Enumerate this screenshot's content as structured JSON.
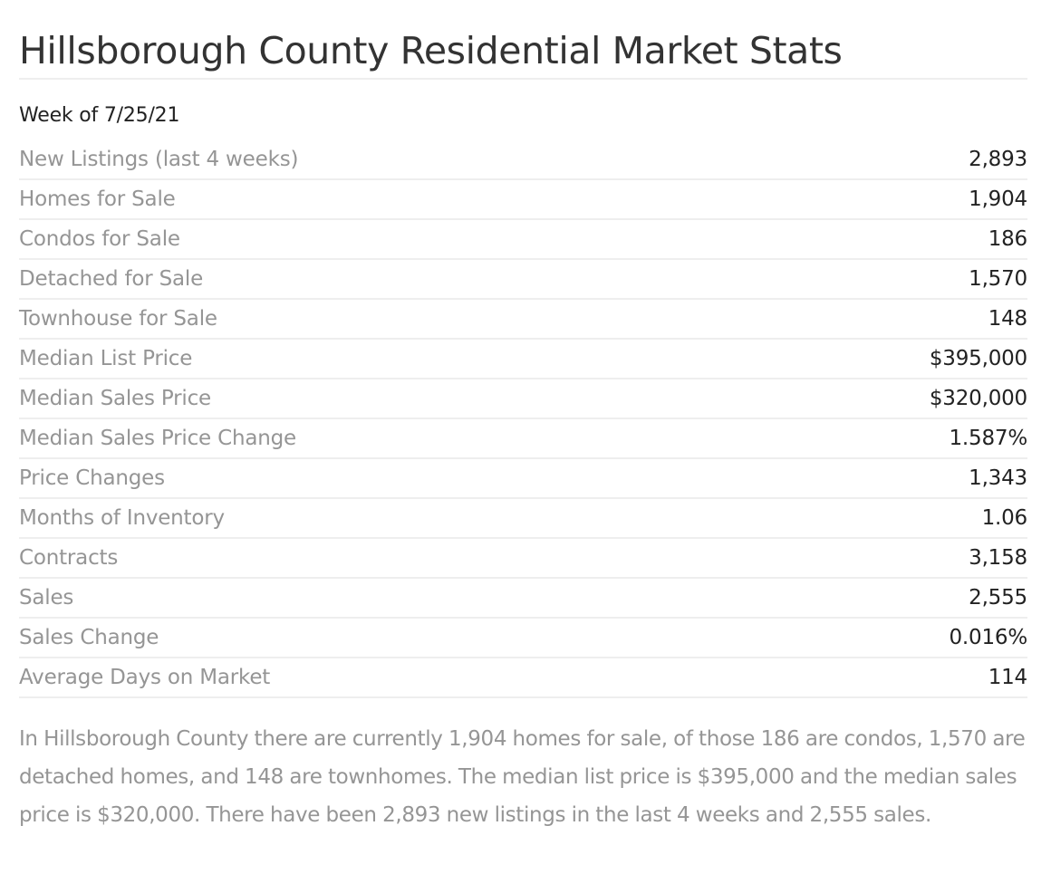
{
  "header": {
    "title": "Hillsborough County Residential Market Stats",
    "subtitle": "Week of 7/25/21"
  },
  "stats": [
    {
      "label": "New Listings (last 4 weeks)",
      "value": "2,893"
    },
    {
      "label": "Homes for Sale",
      "value": "1,904"
    },
    {
      "label": "Condos for Sale",
      "value": "186"
    },
    {
      "label": "Detached for Sale",
      "value": "1,570"
    },
    {
      "label": "Townhouse for Sale",
      "value": "148"
    },
    {
      "label": "Median List Price",
      "value": "$395,000"
    },
    {
      "label": "Median Sales Price",
      "value": "$320,000"
    },
    {
      "label": "Median Sales Price Change",
      "value": "1.587%"
    },
    {
      "label": "Price Changes",
      "value": "1,343"
    },
    {
      "label": "Months of Inventory",
      "value": "1.06"
    },
    {
      "label": "Contracts",
      "value": "3,158"
    },
    {
      "label": "Sales",
      "value": "2,555"
    },
    {
      "label": "Sales Change",
      "value": "0.016%"
    },
    {
      "label": "Average Days on Market",
      "value": "114"
    }
  ],
  "summary": "In Hillsborough County there are currently 1,904 homes for sale, of those 186 are condos, 1,570 are detached homes, and 148 are townhomes. The median list price is $395,000 and the median sales price is $320,000. There have been 2,893 new listings in the last 4 weeks and 2,555 sales.",
  "colors": {
    "title": "#333333",
    "label": "#959595",
    "value": "#222222",
    "divider": "#eeeeee"
  }
}
